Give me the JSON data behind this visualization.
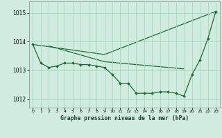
{
  "background_color": "#d0ecdf",
  "grid_color": "#a8d8c0",
  "line_color": "#1a6b35",
  "title": "Graphe pression niveau de la mer (hPa)",
  "ylim": [
    1011.7,
    1015.4
  ],
  "xlim": [
    -0.5,
    23.5
  ],
  "yticks": [
    1012,
    1013,
    1014,
    1015
  ],
  "xticks": [
    0,
    1,
    2,
    3,
    4,
    5,
    6,
    7,
    8,
    9,
    10,
    11,
    12,
    13,
    14,
    15,
    16,
    17,
    18,
    19,
    20,
    21,
    22,
    23
  ],
  "series_marked": {
    "x": [
      0,
      1,
      2,
      3,
      4,
      5,
      6,
      7,
      8,
      9,
      10,
      11,
      12,
      13,
      14,
      15,
      16,
      17,
      18,
      19,
      20,
      21,
      22,
      23
    ],
    "y": [
      1013.9,
      1013.25,
      1013.1,
      1013.15,
      1013.25,
      1013.25,
      1013.2,
      1013.2,
      1013.15,
      1013.1,
      1012.85,
      1012.55,
      1012.55,
      1012.2,
      1012.2,
      1012.2,
      1012.25,
      1012.25,
      1012.2,
      1012.1,
      1012.85,
      1013.35,
      1014.1,
      1015.05
    ]
  },
  "series_up": {
    "x": [
      0,
      9,
      23
    ],
    "y": [
      1013.9,
      1013.55,
      1015.05
    ]
  },
  "series_down": {
    "x": [
      2,
      9,
      19
    ],
    "y": [
      1013.85,
      1013.3,
      1013.05
    ]
  }
}
